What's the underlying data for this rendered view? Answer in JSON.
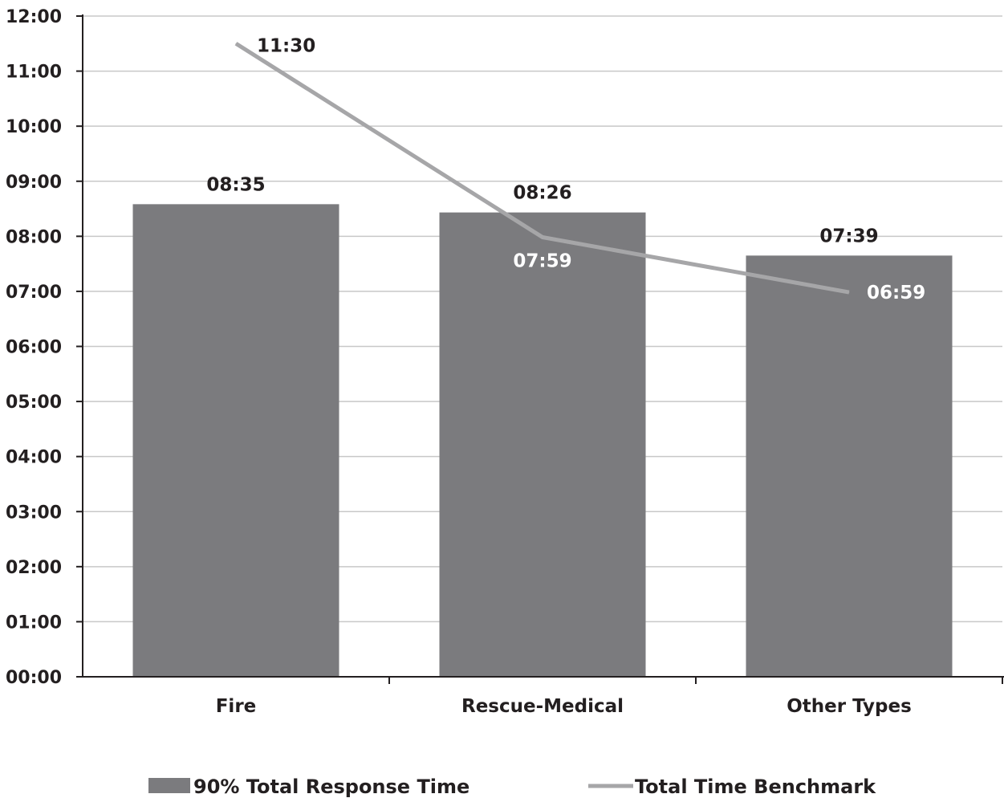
{
  "chart_data": {
    "type": "bar",
    "categories": [
      "Fire",
      "Rescue-Medical",
      "Other Types"
    ],
    "y_unit": "minutes",
    "y_tick_labels": [
      "00:00",
      "01:00",
      "02:00",
      "03:00",
      "04:00",
      "05:00",
      "06:00",
      "07:00",
      "08:00",
      "09:00",
      "10:00",
      "11:00",
      "12:00"
    ],
    "ylim": [
      0,
      12
    ],
    "grid": true,
    "legend_position": "bottom",
    "series": [
      {
        "name": "90% Total Response Time",
        "type": "bar",
        "color": "#7b7b7e",
        "values": [
          8.583,
          8.433,
          7.65
        ],
        "labels": [
          "08:35",
          "08:26",
          "07:39"
        ]
      },
      {
        "name": "Total Time Benchmark",
        "type": "line",
        "color": "#a6a6a8",
        "values": [
          11.5,
          7.983,
          6.983
        ],
        "labels": [
          "11:30",
          "07:59",
          "06:59"
        ]
      }
    ]
  }
}
